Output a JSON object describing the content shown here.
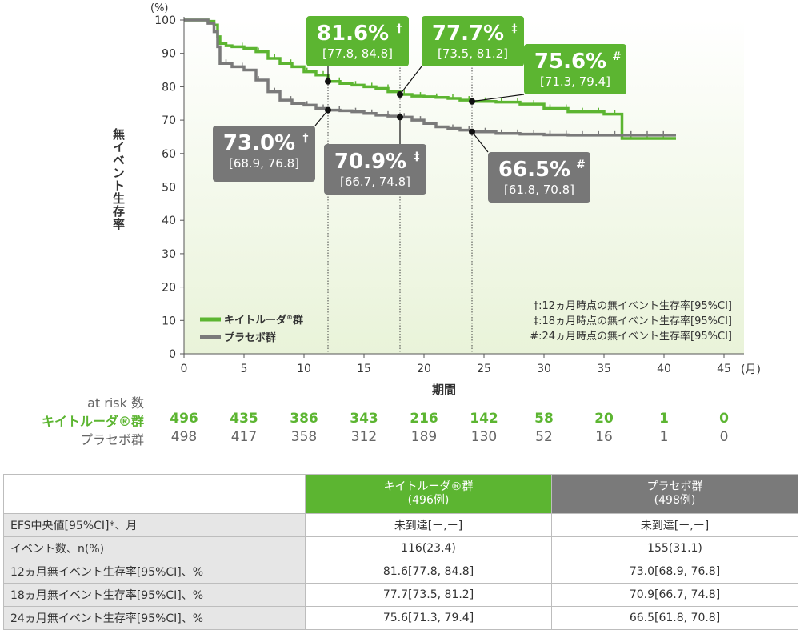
{
  "chart_data": {
    "type": "line",
    "ylabel": "無イベント生存率",
    "y_unit": "(%)",
    "xlabel": "期間",
    "x_unit": "(月)",
    "xlim": [
      0,
      45
    ],
    "ylim": [
      0,
      100
    ],
    "xticks": [
      "0",
      "5",
      "10",
      "15",
      "20",
      "25",
      "30",
      "35",
      "40",
      "45"
    ],
    "yticks": [
      "0",
      "10",
      "20",
      "30",
      "40",
      "50",
      "60",
      "70",
      "80",
      "90",
      "100"
    ],
    "series": [
      {
        "name": "キイトルーダ®群",
        "color": "#5cb531",
        "x": [
          0,
          1.0,
          2.0,
          2.5,
          2.8,
          3.0,
          3.5,
          4.0,
          5.0,
          6.0,
          7.0,
          8.0,
          9.0,
          10.0,
          11.0,
          12.0,
          13.0,
          14.0,
          15.0,
          16.0,
          17.0,
          18.0,
          19.0,
          20.0,
          21.0,
          22.0,
          23.0,
          24.0,
          26.0,
          28.0,
          30.0,
          32.0,
          35.0,
          36.5,
          38.0,
          40.0,
          41.0
        ],
        "y": [
          100,
          100,
          99.6,
          98.5,
          95.0,
          93.0,
          92.3,
          92.0,
          91.5,
          90.5,
          88.5,
          87.0,
          86.0,
          84.5,
          83.5,
          81.6,
          81.0,
          80.5,
          80.0,
          79.5,
          78.5,
          77.7,
          77.2,
          77.0,
          76.8,
          76.5,
          76.0,
          75.6,
          75.4,
          74.8,
          73.5,
          72.5,
          71.8,
          64.5,
          64.5,
          64.5,
          64.5
        ]
      },
      {
        "name": "プラセボ群",
        "color": "#7a7a7a",
        "x": [
          0,
          1.0,
          2.0,
          2.5,
          2.8,
          3.0,
          4.0,
          5.0,
          6.0,
          7.0,
          8.0,
          9.0,
          10.0,
          11.0,
          12.0,
          13.0,
          14.0,
          15.0,
          16.0,
          17.0,
          18.0,
          19.0,
          20.0,
          21.0,
          22.0,
          23.0,
          24.0,
          26.0,
          28.0,
          30.0,
          32.0,
          34.0,
          36.0,
          38.0,
          40.0,
          41.0
        ],
        "y": [
          100,
          100,
          99.0,
          96.5,
          92.0,
          87.0,
          86.0,
          85.0,
          82.0,
          78.5,
          76.0,
          75.0,
          74.5,
          73.5,
          73.0,
          72.8,
          72.5,
          72.0,
          71.5,
          71.2,
          70.9,
          70.0,
          69.0,
          68.0,
          67.5,
          67.0,
          66.5,
          66.0,
          65.8,
          65.6,
          65.5,
          65.5,
          65.5,
          65.5,
          65.5,
          65.5
        ]
      }
    ],
    "reference_lines_x": [
      12,
      18,
      24
    ],
    "annotations": [
      {
        "x": 12,
        "y": 81.6,
        "value": "81.6%",
        "mark": "†",
        "ci": "[77.8, 84.8]",
        "group": "green"
      },
      {
        "x": 18,
        "y": 77.7,
        "value": "77.7%",
        "mark": "‡",
        "ci": "[73.5, 81.2]",
        "group": "green"
      },
      {
        "x": 24,
        "y": 75.6,
        "value": "75.6%",
        "mark": "#",
        "ci": "[71.3, 79.4]",
        "group": "green"
      },
      {
        "x": 12,
        "y": 73.0,
        "value": "73.0%",
        "mark": "†",
        "ci": "[68.9, 76.8]",
        "group": "gray"
      },
      {
        "x": 18,
        "y": 70.9,
        "value": "70.9%",
        "mark": "‡",
        "ci": "[66.7, 74.8]",
        "group": "gray"
      },
      {
        "x": 24,
        "y": 66.5,
        "value": "66.5%",
        "mark": "#",
        "ci": "[61.8, 70.8]",
        "group": "gray"
      }
    ],
    "legend": {
      "position": "bottom-left",
      "items": [
        "キイトルーダ",
        "プラセボ群"
      ],
      "superscript": "®",
      "suffix": "群"
    },
    "footnotes": [
      "†:12ヵ月時点の無イベント生存率[95%CI]",
      "‡:18ヵ月時点の無イベント生存率[95%CI]",
      "#:24ヵ月時点の無イベント生存率[95%CI]"
    ]
  },
  "at_risk": {
    "title": "at risk 数",
    "rows": [
      {
        "label": "キイトルーダ®群",
        "values": [
          "496",
          "435",
          "386",
          "343",
          "216",
          "142",
          "58",
          "20",
          "1",
          "0"
        ]
      },
      {
        "label": "プラセボ群",
        "values": [
          "498",
          "417",
          "358",
          "312",
          "189",
          "130",
          "52",
          "16",
          "1",
          "0"
        ]
      }
    ]
  },
  "table": {
    "headers": [
      {
        "line1": "キイトルーダ®群",
        "line2": "(496例)"
      },
      {
        "line1": "プラセボ群",
        "line2": "(498例)"
      }
    ],
    "rows": [
      {
        "label": "EFS中央値[95%CI]*、月",
        "v1": "未到達[ー,ー]",
        "v2": "未到達[ー,ー]"
      },
      {
        "label": "イベント数、n(%)",
        "v1": "116(23.4)",
        "v2": "155(31.1)"
      },
      {
        "label": "12ヵ月無イベント生存率[95%CI]、%",
        "v1": "81.6[77.8, 84.8]",
        "v2": "73.0[68.9, 76.8]"
      },
      {
        "label": "18ヵ月無イベント生存率[95%CI]、%",
        "v1": "77.7[73.5, 81.2]",
        "v2": "70.9[66.7, 74.8]"
      },
      {
        "label": "24ヵ月無イベント生存率[95%CI]、%",
        "v1": "75.6[71.3, 79.4]",
        "v2": "66.5[61.8, 70.8]"
      }
    ]
  }
}
